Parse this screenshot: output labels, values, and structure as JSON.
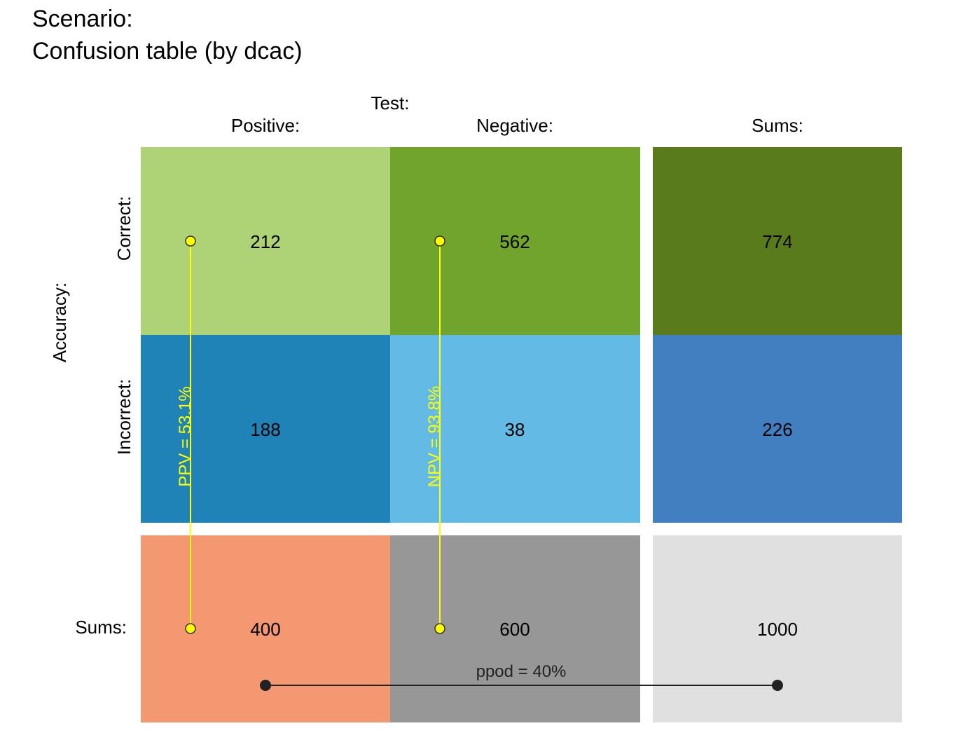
{
  "title": {
    "line1": "Scenario:",
    "line2": "Confusion table (by dcac)"
  },
  "labels": {
    "test": "Test:",
    "positive": "Positive:",
    "negative": "Negative:",
    "sums_col": "Sums:",
    "accuracy": "Accuracy:",
    "correct": "Correct:",
    "incorrect": "Incorrect:",
    "sums_row": "Sums:"
  },
  "colors": {
    "cor_pos": "#add376",
    "cor_neg": "#71a42c",
    "cor_sum": "#5a7b1b",
    "inc_pos": "#1f83b8",
    "inc_neg": "#63bae4",
    "inc_sum": "#417fc1",
    "pos_sum": "#f39870",
    "neg_sum": "#979797",
    "total": "#e0e0e0",
    "accent_line": "#ffff00",
    "ppod_line": "#222222"
  },
  "chart_data": {
    "type": "table",
    "rows": [
      "Correct:",
      "Incorrect:",
      "Sums:"
    ],
    "columns": [
      "Positive:",
      "Negative:",
      "Sums:"
    ],
    "cells": [
      [
        212,
        562,
        774
      ],
      [
        188,
        38,
        226
      ],
      [
        400,
        600,
        1000
      ]
    ],
    "annotations": {
      "ppv": "PPV = 53.1%",
      "npv": "NPV = 93.8%",
      "ppod": "ppod = 40%"
    }
  }
}
